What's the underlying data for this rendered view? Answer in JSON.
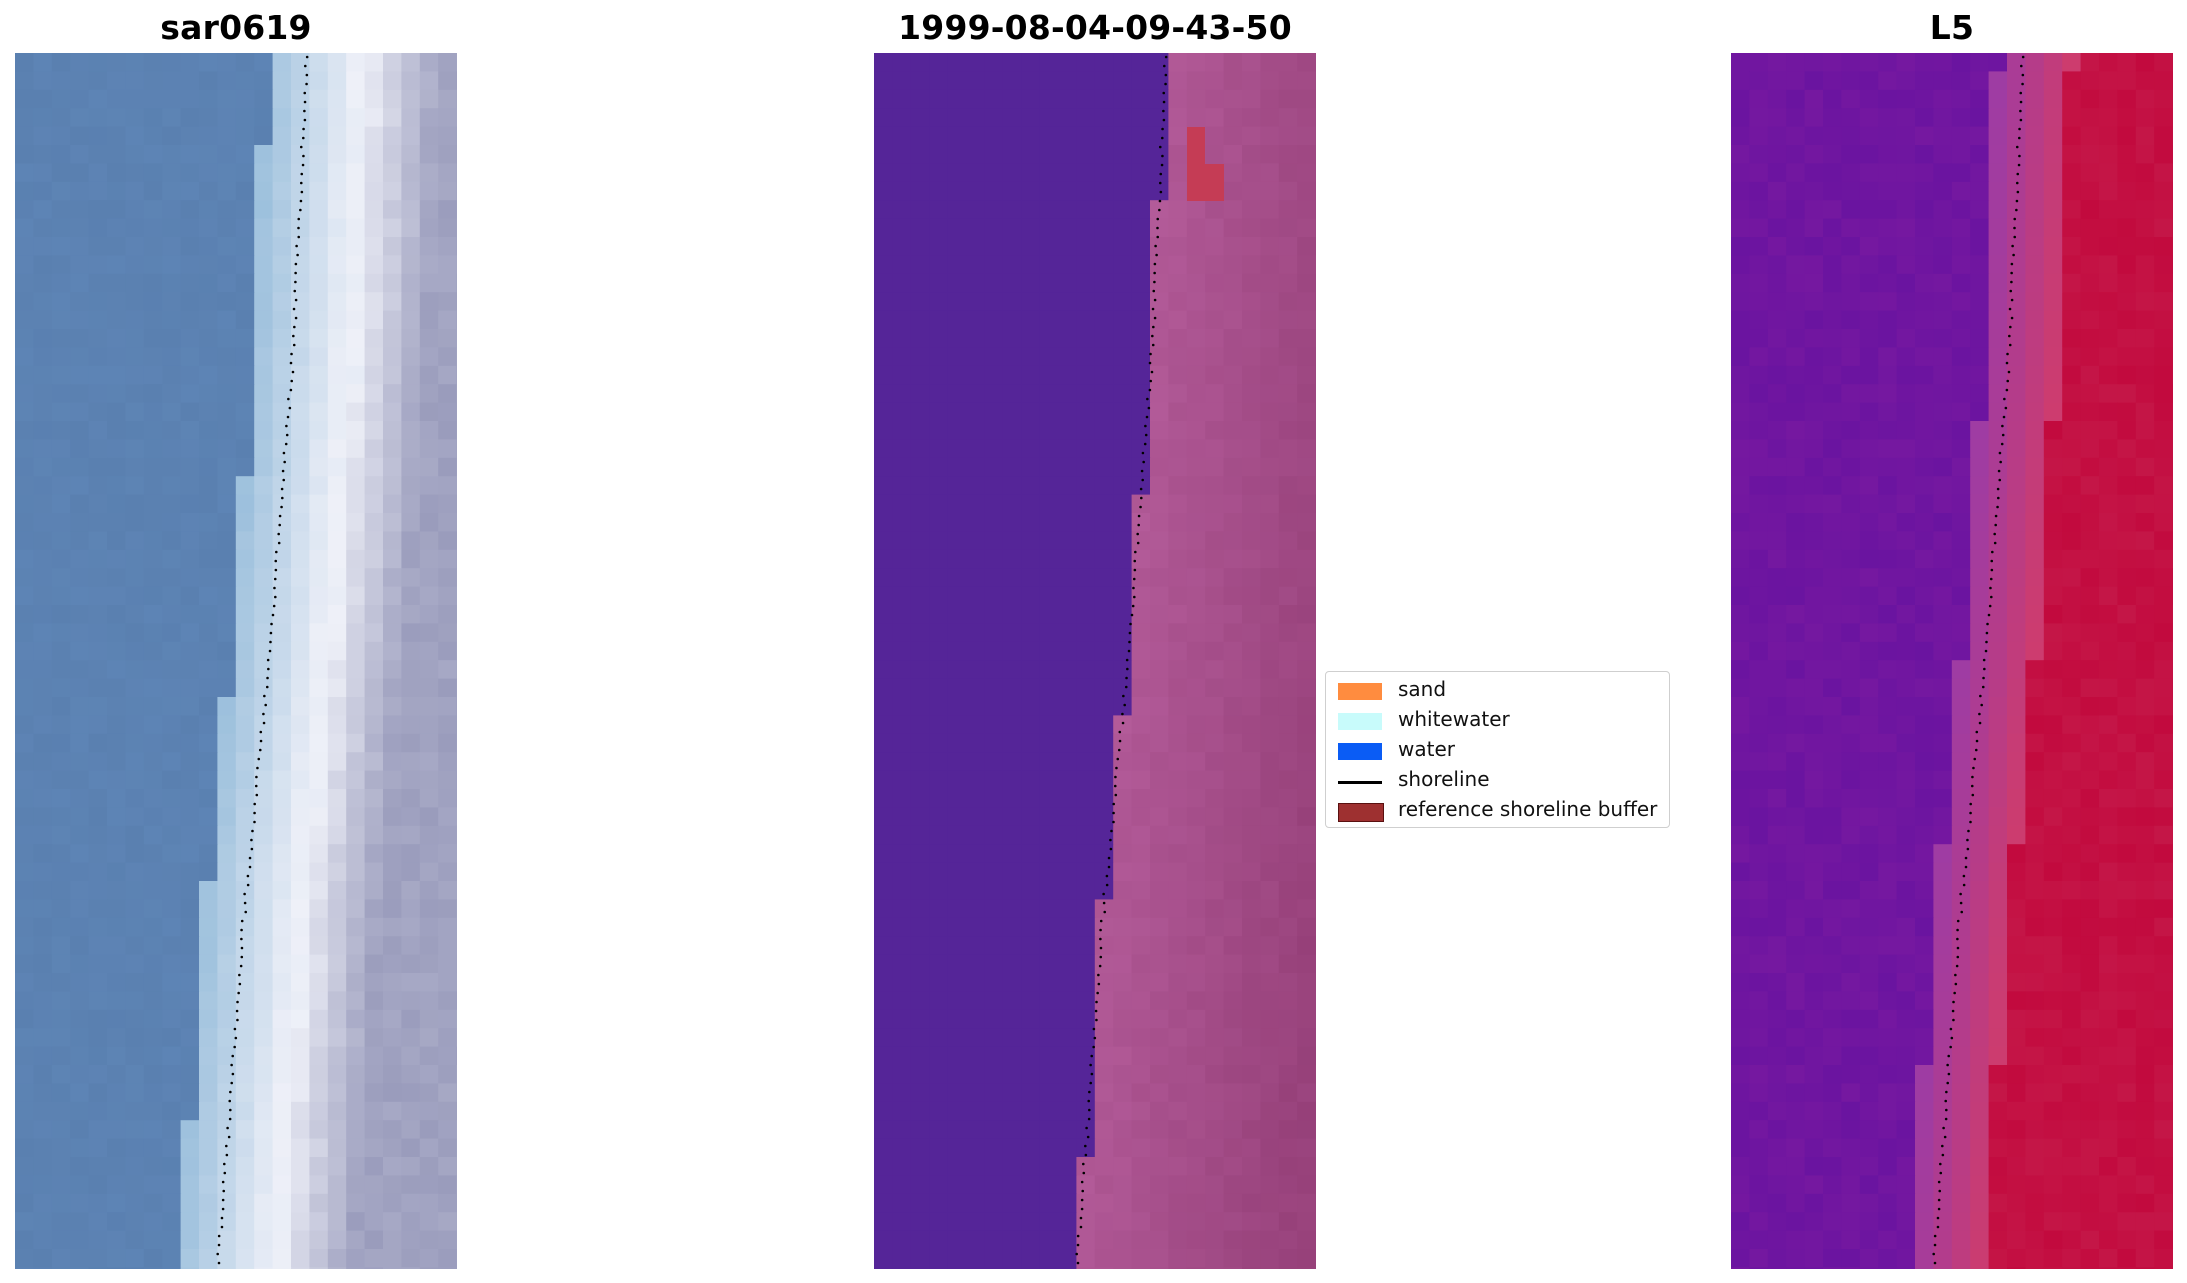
{
  "panels": [
    {
      "title": "sar0619",
      "kind": "rgb"
    },
    {
      "title": "1999-08-04-09-43-50",
      "kind": "classified"
    },
    {
      "title": "L5",
      "kind": "index"
    }
  ],
  "legend": {
    "items": [
      {
        "label": "sand",
        "color": "#ff8c3f",
        "type": "patch"
      },
      {
        "label": "whitewater",
        "color": "#c8fbfb",
        "type": "patch"
      },
      {
        "label": "water",
        "color": "#0a5cf5",
        "type": "patch"
      },
      {
        "label": "shoreline",
        "color": "#000000",
        "type": "line"
      },
      {
        "label": "reference shoreline buffer",
        "color": "#9e3030",
        "type": "patch",
        "border": "#5a1010"
      }
    ]
  },
  "colors": {
    "rgb_water": "#5a80b0",
    "rgb_white": "#eef0f8",
    "rgb_land": "#9a9cbc",
    "class_water": "#552598",
    "class_land": "#b25a98",
    "class_buffer": "#c53c55",
    "index_water": "#7518a0",
    "index_land": "#c20a3e",
    "shoreline": "#000000"
  }
}
